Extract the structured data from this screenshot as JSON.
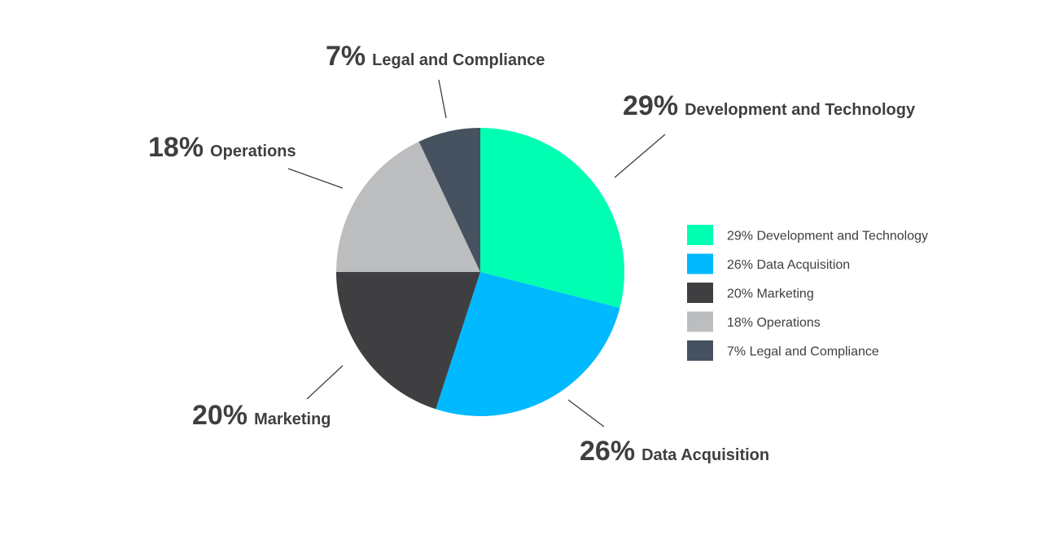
{
  "chart_data": {
    "type": "pie",
    "title": "",
    "slices": [
      {
        "label": "Development and Technology",
        "value": 29,
        "pct_text": "29%",
        "legend_text": "29% Development and Technology",
        "color": "#00ffb2"
      },
      {
        "label": "Data Acquisition",
        "value": 26,
        "pct_text": "26%",
        "legend_text": "26% Data Acquisition",
        "color": "#00b9ff"
      },
      {
        "label": "Marketing",
        "value": 20,
        "pct_text": "20%",
        "legend_text": "20% Marketing",
        "color": "#3f3f41"
      },
      {
        "label": "Operations",
        "value": 18,
        "pct_text": "18%",
        "legend_text": "18% Operations",
        "color": "#bcbdbf"
      },
      {
        "label": "Legal and Compliance",
        "value": 7,
        "pct_text": "7%",
        "legend_text": "7% Legal and Compliance",
        "color": "#46525f"
      }
    ],
    "legend_position": "right",
    "grid": false
  }
}
